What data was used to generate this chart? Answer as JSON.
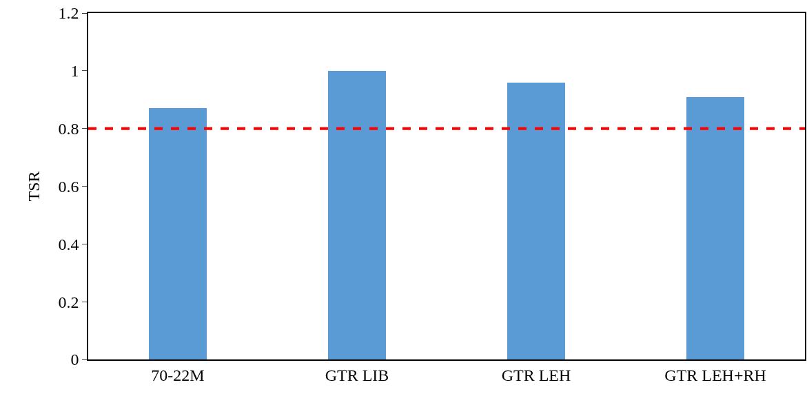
{
  "chart_data": {
    "type": "bar",
    "ylabel": "TSR",
    "categories": [
      "70-22M",
      "GTR LIB",
      "GTR LEH",
      "GTR LEH+RH"
    ],
    "values": [
      0.87,
      1.0,
      0.96,
      0.91
    ],
    "color": "#5b9bd5",
    "ylim": [
      0,
      1.2
    ],
    "yticks": [
      0,
      0.2,
      0.4,
      0.6,
      0.8,
      1,
      1.2
    ],
    "grid": false,
    "ref_lines": [
      {
        "axis": "y",
        "value": 0.8,
        "color": "#ff0000",
        "line_style": "dashed"
      }
    ]
  }
}
